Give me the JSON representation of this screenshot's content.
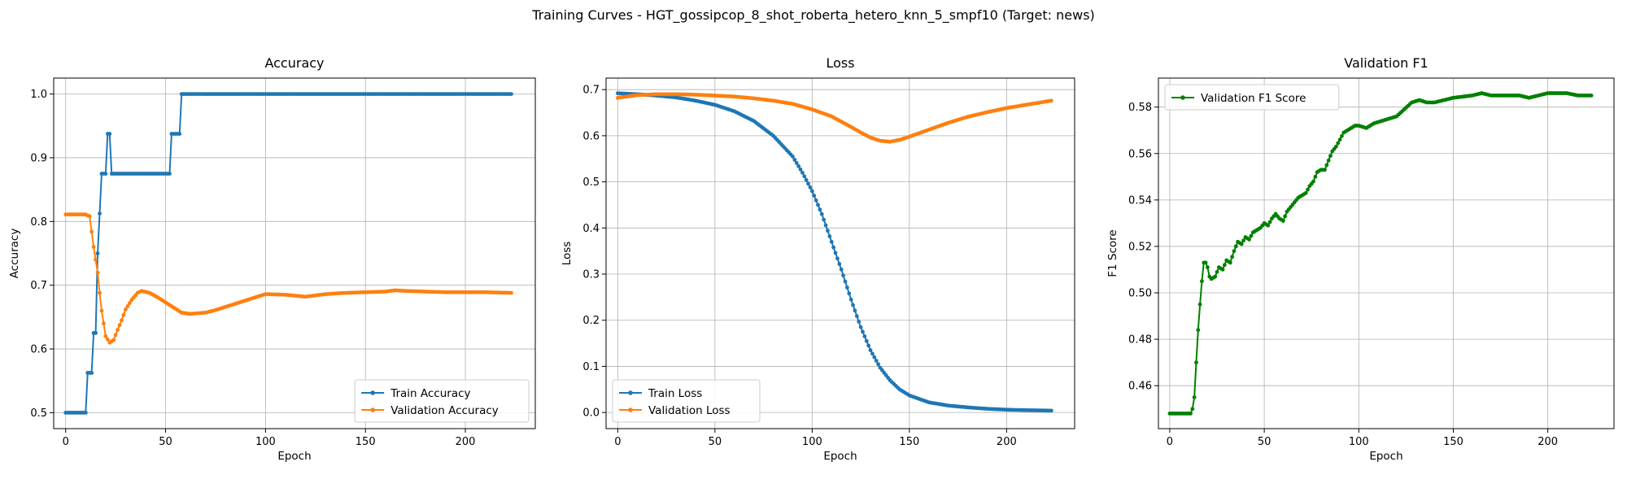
{
  "figure": {
    "suptitle": "Training Curves - HGT_gossipcop_8_shot_roberta_hetero_knn_5_smpf10 (Target: news)"
  },
  "chart_data": [
    {
      "type": "line",
      "title": "Accuracy",
      "xlabel": "Epoch",
      "ylabel": "Accuracy",
      "xlim": [
        -6,
        235
      ],
      "ylim": [
        0.475,
        1.025
      ],
      "xticks": [
        0,
        50,
        100,
        150,
        200
      ],
      "xtick_labels": [
        "0",
        "50",
        "100",
        "150",
        "200"
      ],
      "yticks": [
        0.5,
        0.6,
        0.7,
        0.8,
        0.9,
        1.0
      ],
      "ytick_labels": [
        "0.5",
        "0.6",
        "0.7",
        "0.8",
        "0.9",
        "1.0"
      ],
      "grid": true,
      "legend_position": "lower-right",
      "series": [
        {
          "name": "Train Accuracy",
          "color": "#1f77b4",
          "x": [
            0,
            10,
            11,
            13,
            14,
            15,
            16,
            17,
            18,
            20,
            21,
            22,
            23,
            24,
            52,
            53,
            57,
            58,
            223
          ],
          "y": [
            0.5,
            0.5,
            0.5625,
            0.5625,
            0.625,
            0.625,
            0.75,
            0.8125,
            0.875,
            0.875,
            0.9375,
            0.9375,
            0.875,
            0.875,
            0.875,
            0.9375,
            0.9375,
            1.0,
            1.0
          ]
        },
        {
          "name": "Validation Accuracy",
          "color": "#ff7f0e",
          "x": [
            0,
            10,
            12,
            14,
            16,
            17,
            18,
            19,
            20,
            22,
            24,
            26,
            28,
            30,
            33,
            36,
            38,
            42,
            46,
            50,
            54,
            58,
            62,
            70,
            75,
            80,
            85,
            90,
            100,
            110,
            120,
            130,
            140,
            150,
            160,
            165,
            170,
            180,
            190,
            200,
            210,
            223
          ],
          "y": [
            0.811,
            0.811,
            0.808,
            0.76,
            0.72,
            0.688,
            0.66,
            0.64,
            0.62,
            0.61,
            0.614,
            0.63,
            0.645,
            0.662,
            0.677,
            0.688,
            0.691,
            0.688,
            0.681,
            0.673,
            0.665,
            0.657,
            0.655,
            0.657,
            0.661,
            0.666,
            0.671,
            0.676,
            0.686,
            0.685,
            0.682,
            0.686,
            0.688,
            0.689,
            0.69,
            0.692,
            0.691,
            0.69,
            0.689,
            0.689,
            0.689,
            0.688
          ]
        }
      ]
    },
    {
      "type": "line",
      "title": "Loss",
      "xlabel": "Epoch",
      "ylabel": "Loss",
      "xlim": [
        -6,
        235
      ],
      "ylim": [
        -0.035,
        0.725
      ],
      "xticks": [
        0,
        50,
        100,
        150,
        200
      ],
      "xtick_labels": [
        "0",
        "50",
        "100",
        "150",
        "200"
      ],
      "yticks": [
        0.0,
        0.1,
        0.2,
        0.3,
        0.4,
        0.5,
        0.6,
        0.7
      ],
      "ytick_labels": [
        "0.0",
        "0.1",
        "0.2",
        "0.3",
        "0.4",
        "0.5",
        "0.6",
        "0.7"
      ],
      "grid": true,
      "legend_position": "lower-left",
      "series": [
        {
          "name": "Train Loss",
          "color": "#1f77b4",
          "x": [
            0,
            10,
            20,
            30,
            40,
            50,
            60,
            70,
            80,
            90,
            95,
            100,
            105,
            110,
            115,
            120,
            125,
            130,
            135,
            140,
            145,
            150,
            160,
            170,
            180,
            190,
            200,
            210,
            223
          ],
          "y": [
            0.692,
            0.69,
            0.687,
            0.683,
            0.676,
            0.667,
            0.653,
            0.632,
            0.6,
            0.555,
            0.52,
            0.48,
            0.43,
            0.37,
            0.31,
            0.245,
            0.185,
            0.135,
            0.097,
            0.07,
            0.05,
            0.037,
            0.022,
            0.015,
            0.011,
            0.008,
            0.006,
            0.005,
            0.004
          ]
        },
        {
          "name": "Validation Loss",
          "color": "#ff7f0e",
          "x": [
            0,
            10,
            20,
            30,
            40,
            50,
            60,
            70,
            80,
            90,
            100,
            110,
            120,
            125,
            130,
            135,
            140,
            145,
            150,
            160,
            170,
            180,
            190,
            200,
            210,
            223
          ],
          "y": [
            0.682,
            0.688,
            0.69,
            0.69,
            0.689,
            0.687,
            0.685,
            0.681,
            0.676,
            0.669,
            0.657,
            0.642,
            0.619,
            0.607,
            0.596,
            0.589,
            0.587,
            0.591,
            0.598,
            0.613,
            0.628,
            0.641,
            0.651,
            0.66,
            0.667,
            0.676
          ]
        }
      ]
    },
    {
      "type": "line",
      "title": "Validation F1",
      "xlabel": "Epoch",
      "ylabel": "F1 Score",
      "xlim": [
        -6,
        235
      ],
      "ylim": [
        0.4415,
        0.5925
      ],
      "xticks": [
        0,
        50,
        100,
        150,
        200
      ],
      "xtick_labels": [
        "0",
        "50",
        "100",
        "150",
        "200"
      ],
      "yticks": [
        0.46,
        0.48,
        0.5,
        0.52,
        0.54,
        0.56,
        0.58
      ],
      "ytick_labels": [
        "0.46",
        "0.48",
        "0.50",
        "0.52",
        "0.54",
        "0.56",
        "0.58"
      ],
      "grid": true,
      "legend_position": "upper-left",
      "series": [
        {
          "name": "Validation F1 Score",
          "color": "#008000",
          "x": [
            0,
            10,
            11,
            12,
            13,
            14,
            15,
            16,
            17,
            18,
            19,
            20,
            21,
            22,
            24,
            26,
            28,
            30,
            32,
            34,
            36,
            38,
            40,
            42,
            44,
            46,
            48,
            50,
            52,
            54,
            56,
            58,
            60,
            62,
            64,
            66,
            68,
            70,
            72,
            74,
            76,
            78,
            80,
            82,
            84,
            86,
            88,
            90,
            92,
            94,
            96,
            98,
            100,
            104,
            108,
            112,
            116,
            120,
            124,
            128,
            132,
            136,
            140,
            150,
            160,
            165,
            170,
            180,
            185,
            190,
            200,
            210,
            216,
            223
          ],
          "y": [
            0.448,
            0.448,
            0.448,
            0.45,
            0.455,
            0.47,
            0.484,
            0.495,
            0.505,
            0.513,
            0.513,
            0.511,
            0.507,
            0.506,
            0.507,
            0.511,
            0.51,
            0.514,
            0.513,
            0.518,
            0.522,
            0.521,
            0.524,
            0.523,
            0.526,
            0.527,
            0.528,
            0.53,
            0.529,
            0.532,
            0.534,
            0.532,
            0.531,
            0.535,
            0.537,
            0.539,
            0.541,
            0.542,
            0.543,
            0.546,
            0.548,
            0.552,
            0.553,
            0.553,
            0.557,
            0.561,
            0.563,
            0.566,
            0.569,
            0.57,
            0.571,
            0.572,
            0.572,
            0.571,
            0.573,
            0.574,
            0.575,
            0.576,
            0.579,
            0.582,
            0.583,
            0.582,
            0.582,
            0.584,
            0.585,
            0.586,
            0.585,
            0.585,
            0.585,
            0.584,
            0.586,
            0.586,
            0.585,
            0.585
          ]
        }
      ]
    }
  ]
}
